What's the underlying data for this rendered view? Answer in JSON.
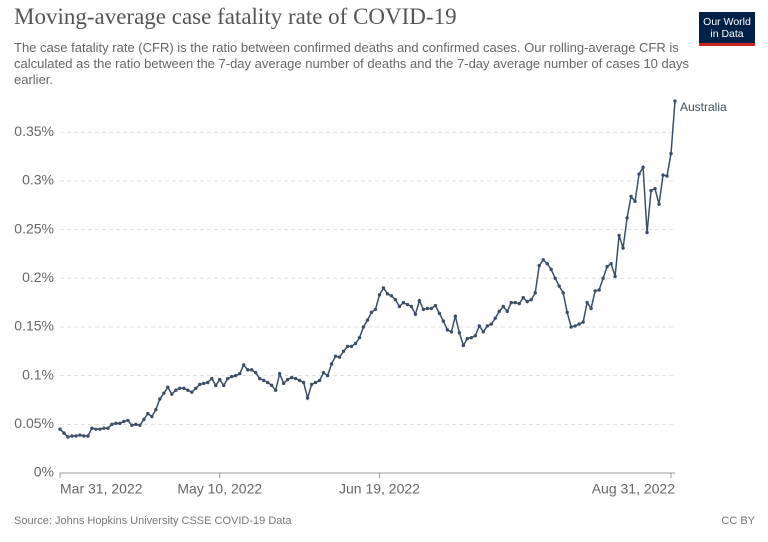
{
  "chart_data": {
    "type": "line",
    "title": "Moving-average case fatality rate of COVID-19",
    "subtitle": "The case fatality rate (CFR) is the ratio between confirmed deaths and confirmed cases. Our rolling-average CFR is calculated as the ratio between the 7-day average number of deaths and the 7-day average number of cases 10 days earlier.",
    "logo": [
      "Our World",
      "in Data"
    ],
    "source": "Source: Johns Hopkins University CSSE COVID-19 Data",
    "license": "CC BY",
    "x": [
      "2022-03-31",
      "2022-04-01",
      "2022-04-02",
      "2022-04-03",
      "2022-04-04",
      "2022-04-05",
      "2022-04-06",
      "2022-04-07",
      "2022-04-08",
      "2022-04-09",
      "2022-04-10",
      "2022-04-11",
      "2022-04-12",
      "2022-04-13",
      "2022-04-14",
      "2022-04-15",
      "2022-04-16",
      "2022-04-17",
      "2022-04-18",
      "2022-04-19",
      "2022-04-20",
      "2022-04-21",
      "2022-04-22",
      "2022-04-23",
      "2022-04-24",
      "2022-04-25",
      "2022-04-26",
      "2022-04-27",
      "2022-04-28",
      "2022-04-29",
      "2022-04-30",
      "2022-05-01",
      "2022-05-02",
      "2022-05-03",
      "2022-05-04",
      "2022-05-05",
      "2022-05-06",
      "2022-05-07",
      "2022-05-08",
      "2022-05-09",
      "2022-05-10",
      "2022-05-11",
      "2022-05-12",
      "2022-05-13",
      "2022-05-14",
      "2022-05-15",
      "2022-05-16",
      "2022-05-17",
      "2022-05-18",
      "2022-05-19",
      "2022-05-20",
      "2022-05-21",
      "2022-05-22",
      "2022-05-23",
      "2022-05-24",
      "2022-05-25",
      "2022-05-26",
      "2022-05-27",
      "2022-05-28",
      "2022-05-29",
      "2022-05-30",
      "2022-05-31",
      "2022-06-01",
      "2022-06-02",
      "2022-06-03",
      "2022-06-04",
      "2022-06-05",
      "2022-06-06",
      "2022-06-07",
      "2022-06-08",
      "2022-06-09",
      "2022-06-10",
      "2022-06-11",
      "2022-06-12",
      "2022-06-13",
      "2022-06-14",
      "2022-06-15",
      "2022-06-16",
      "2022-06-17",
      "2022-06-18",
      "2022-06-19",
      "2022-06-20",
      "2022-06-21",
      "2022-06-22",
      "2022-06-23",
      "2022-06-24",
      "2022-06-25",
      "2022-06-26",
      "2022-06-27",
      "2022-06-28",
      "2022-06-29",
      "2022-06-30",
      "2022-07-01",
      "2022-07-02",
      "2022-07-03",
      "2022-07-04",
      "2022-07-05",
      "2022-07-06",
      "2022-07-07",
      "2022-07-08",
      "2022-07-09",
      "2022-07-10",
      "2022-07-11",
      "2022-07-12",
      "2022-07-13",
      "2022-07-14",
      "2022-07-15",
      "2022-07-16",
      "2022-07-17",
      "2022-07-18",
      "2022-07-19",
      "2022-07-20",
      "2022-07-21",
      "2022-07-22",
      "2022-07-23",
      "2022-07-24",
      "2022-07-25",
      "2022-07-26",
      "2022-07-27",
      "2022-07-28",
      "2022-07-29",
      "2022-07-30",
      "2022-07-31",
      "2022-08-01",
      "2022-08-02",
      "2022-08-03",
      "2022-08-04",
      "2022-08-05",
      "2022-08-06",
      "2022-08-07",
      "2022-08-08",
      "2022-08-09",
      "2022-08-10",
      "2022-08-11",
      "2022-08-12",
      "2022-08-13",
      "2022-08-14",
      "2022-08-15",
      "2022-08-16",
      "2022-08-17",
      "2022-08-18",
      "2022-08-19",
      "2022-08-20",
      "2022-08-21",
      "2022-08-22",
      "2022-08-23",
      "2022-08-24",
      "2022-08-25",
      "2022-08-26",
      "2022-08-27",
      "2022-08-28",
      "2022-08-29",
      "2022-08-30",
      "2022-08-31",
      "2022-09-01"
    ],
    "series": [
      {
        "name": "Australia",
        "color": "#3c4e66",
        "values": [
          0.045,
          0.041,
          0.037,
          0.038,
          0.038,
          0.039,
          0.038,
          0.038,
          0.046,
          0.045,
          0.045,
          0.046,
          0.046,
          0.05,
          0.051,
          0.051,
          0.053,
          0.054,
          0.049,
          0.05,
          0.049,
          0.055,
          0.061,
          0.058,
          0.065,
          0.076,
          0.082,
          0.088,
          0.081,
          0.085,
          0.087,
          0.087,
          0.085,
          0.083,
          0.087,
          0.091,
          0.092,
          0.093,
          0.097,
          0.09,
          0.096,
          0.09,
          0.097,
          0.099,
          0.1,
          0.102,
          0.111,
          0.106,
          0.106,
          0.103,
          0.097,
          0.095,
          0.093,
          0.09,
          0.085,
          0.102,
          0.092,
          0.096,
          0.098,
          0.097,
          0.095,
          0.093,
          0.077,
          0.091,
          0.093,
          0.095,
          0.103,
          0.1,
          0.112,
          0.12,
          0.119,
          0.125,
          0.13,
          0.13,
          0.133,
          0.139,
          0.15,
          0.157,
          0.165,
          0.168,
          0.183,
          0.19,
          0.184,
          0.182,
          0.178,
          0.171,
          0.175,
          0.173,
          0.171,
          0.163,
          0.177,
          0.168,
          0.169,
          0.169,
          0.172,
          0.164,
          0.156,
          0.147,
          0.145,
          0.161,
          0.144,
          0.131,
          0.138,
          0.139,
          0.141,
          0.151,
          0.145,
          0.151,
          0.153,
          0.159,
          0.166,
          0.171,
          0.166,
          0.175,
          0.175,
          0.174,
          0.18,
          0.176,
          0.178,
          0.185,
          0.213,
          0.219,
          0.215,
          0.209,
          0.2,
          0.192,
          0.185,
          0.165,
          0.15,
          0.151,
          0.153,
          0.155,
          0.175,
          0.169,
          0.187,
          0.188,
          0.2,
          0.212,
          0.215,
          0.202,
          0.244,
          0.231,
          0.262,
          0.284,
          0.279,
          0.307,
          0.314,
          0.247,
          0.29,
          0.292,
          0.276,
          0.306,
          0.305,
          0.328,
          0.382
        ]
      }
    ],
    "xlim": [
      "2022-03-31",
      "2022-09-01"
    ],
    "xticks": [
      {
        "value": "2022-03-31",
        "label": "Mar 31, 2022"
      },
      {
        "value": "2022-05-10",
        "label": "May 10, 2022"
      },
      {
        "value": "2022-06-19",
        "label": "Jun 19, 2022"
      },
      {
        "value": "2022-08-31",
        "label": "Aug 31, 2022"
      }
    ],
    "ylim": [
      0,
      0.38
    ],
    "yticks": [
      {
        "value": 0,
        "label": "0%"
      },
      {
        "value": 0.05,
        "label": "0.05%"
      },
      {
        "value": 0.1,
        "label": "0.1%"
      },
      {
        "value": 0.15,
        "label": "0.15%"
      },
      {
        "value": 0.2,
        "label": "0.2%"
      },
      {
        "value": 0.25,
        "label": "0.25%"
      },
      {
        "value": 0.3,
        "label": "0.3%"
      },
      {
        "value": 0.35,
        "label": "0.35%"
      }
    ],
    "grid": true
  }
}
